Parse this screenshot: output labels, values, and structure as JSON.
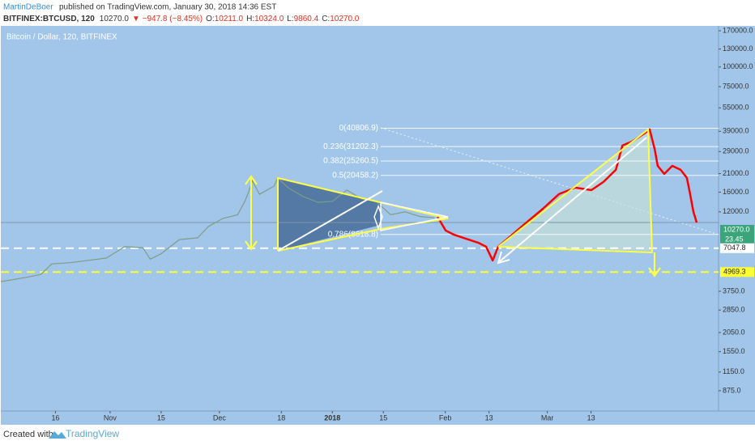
{
  "header": {
    "author": "MartinDeBoer",
    "published": "published on TradingView.com, January 30, 2018 14:36 EST",
    "symbol": "BITFINEX:BTCUSD, 120",
    "last": "10270.0",
    "change": "▼ −947.8 (−8.45%)",
    "ohlc": [
      {
        "key": "O:",
        "value": "10211.0"
      },
      {
        "key": "H:",
        "value": "10324.0"
      },
      {
        "key": "L:",
        "value": "9860.4"
      },
      {
        "key": "C:",
        "value": "10270.0"
      }
    ]
  },
  "footer": {
    "created": "Created with",
    "brand": "TradingView"
  },
  "chart_data": {
    "type": "line",
    "title": "Bitcoin / Dollar, 120, BITFINEX",
    "log_scale": true,
    "xlim": [
      1,
      198
    ],
    "ylim": [
      650,
      182500
    ],
    "xticks": [
      {
        "value": 16,
        "label": "16"
      },
      {
        "value": 31,
        "label": "Nov"
      },
      {
        "value": 45,
        "label": "15"
      },
      {
        "value": 61,
        "label": "Dec"
      },
      {
        "value": 78,
        "label": "18"
      },
      {
        "value": 92,
        "label": "2018"
      },
      {
        "value": 106,
        "label": "15"
      },
      {
        "value": 123,
        "label": "Feb"
      },
      {
        "value": 135,
        "label": "13"
      },
      {
        "value": 151,
        "label": "Mar"
      },
      {
        "value": 163,
        "label": "13"
      }
    ],
    "yticks": [
      {
        "value": 170000,
        "label": "170000.0"
      },
      {
        "value": 130000,
        "label": "130000.0"
      },
      {
        "value": 100000,
        "label": "100000.0"
      },
      {
        "value": 75000,
        "label": "75000.0"
      },
      {
        "value": 55000,
        "label": "55000.0"
      },
      {
        "value": 39000,
        "label": "39000.0"
      },
      {
        "value": 29000,
        "label": "29000.0"
      },
      {
        "value": 21000,
        "label": "21000.0"
      },
      {
        "value": 16000,
        "label": "16000.0"
      },
      {
        "value": 12000,
        "label": "12000.0"
      },
      {
        "value": 3750,
        "label": "3750.0"
      },
      {
        "value": 2850,
        "label": "2850.0"
      },
      {
        "value": 2050,
        "label": "2050.0"
      },
      {
        "value": 1550,
        "label": "1550.0"
      },
      {
        "value": 1150,
        "label": "1150.0"
      },
      {
        "value": 875,
        "label": "875.0"
      }
    ],
    "series": [
      {
        "color": "#7f9c86",
        "x": [
          1,
          8,
          12,
          15,
          20,
          25,
          30,
          35,
          40,
          42,
          45,
          50,
          55,
          58,
          62,
          66,
          68,
          69,
          70,
          72,
          76,
          77,
          80,
          84,
          88,
          92,
          96,
          100,
          104,
          108,
          112,
          116,
          120
        ],
        "values": [
          4320,
          4600,
          4800,
          5600,
          5700,
          5900,
          6100,
          7200,
          7100,
          6000,
          6500,
          8000,
          8200,
          9700,
          10900,
          11500,
          14000,
          16000,
          19000,
          15500,
          17500,
          19700,
          17000,
          15000,
          13800,
          14000,
          16500,
          14500,
          14000,
          11500,
          12000,
          11200,
          11000
        ]
      },
      {
        "color": "#ff0000",
        "x": [
          120.9,
          123.1,
          125.3,
          128.6,
          132,
          134.2,
          136,
          137.5,
          140.9,
          145.3,
          149.8,
          154.2,
          158.7,
          163.1,
          166.4,
          169.8,
          171.6,
          174.2,
          177.6,
          179.1,
          180.5,
          181.3,
          183.1,
          185.3,
          187.6,
          189.3,
          190.2,
          191.1,
          192
        ],
        "values": [
          11150,
          9125,
          8600,
          8110,
          7640,
          7200,
          5890,
          7200,
          8400,
          10270,
          12560,
          15550,
          17100,
          16490,
          18580,
          22180,
          31650,
          33570,
          37780,
          40090,
          29820,
          23520,
          20910,
          23520,
          22180,
          19710,
          15550,
          11990,
          10270
        ]
      }
    ],
    "fib_levels": [
      {
        "value": 40806.9,
        "label": "0(40806.9)"
      },
      {
        "value": 31202.3,
        "label": "0.236(31202.3)"
      },
      {
        "value": 25260.5,
        "label": "0.382(25260.5)"
      },
      {
        "value": 20458.2,
        "label": "0.5(20458.2)"
      },
      {
        "value": 8618.8,
        "label": "0.786(8618.8)"
      }
    ],
    "price_labels": [
      {
        "value": 10270,
        "label": "10270.0",
        "color": "#3aa57a"
      },
      {
        "value": 7047.8,
        "label": "7047.8",
        "color": "#ffffff"
      },
      {
        "value": 4969.3,
        "label": "4969.3",
        "color": "#ffff33"
      }
    ],
    "countdown": "23.45"
  }
}
